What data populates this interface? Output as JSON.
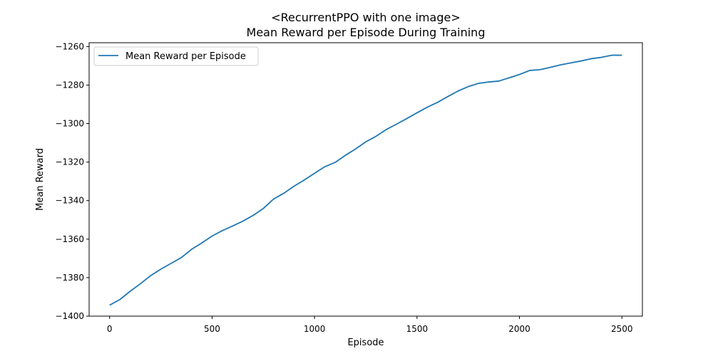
{
  "chart_data": {
    "type": "line",
    "title": "<RecurrentPPO with one image>",
    "subtitle": "Mean Reward per Episode During Training",
    "xlabel": "Episode",
    "ylabel": "Mean Reward",
    "xlim": [
      -100,
      2600
    ],
    "ylim": [
      -1400,
      -1258
    ],
    "xticks": [
      0,
      500,
      1000,
      1500,
      2000,
      2500
    ],
    "yticks": [
      -1400,
      -1380,
      -1360,
      -1340,
      -1320,
      -1300,
      -1280,
      -1260
    ],
    "grid": false,
    "legend": "upper-left",
    "series": [
      {
        "name": "Mean Reward per Episode",
        "color": "#1f77b4",
        "x": [
          0,
          50,
          100,
          150,
          200,
          250,
          300,
          350,
          400,
          450,
          500,
          550,
          600,
          650,
          700,
          750,
          800,
          850,
          900,
          950,
          1000,
          1050,
          1100,
          1150,
          1200,
          1250,
          1300,
          1350,
          1400,
          1450,
          1500,
          1550,
          1600,
          1650,
          1700,
          1750,
          1800,
          1850,
          1900,
          1950,
          2000,
          2050,
          2100,
          2150,
          2200,
          2250,
          2300,
          2350,
          2400,
          2450,
          2500
        ],
        "y": [
          -1394.3,
          -1391.4,
          -1387.1,
          -1383.2,
          -1379.0,
          -1375.6,
          -1372.6,
          -1369.6,
          -1365.3,
          -1362.0,
          -1358.4,
          -1355.6,
          -1353.2,
          -1350.7,
          -1347.7,
          -1344.1,
          -1339.2,
          -1336.2,
          -1332.5,
          -1329.3,
          -1325.8,
          -1322.4,
          -1320.2,
          -1316.5,
          -1313.2,
          -1309.5,
          -1306.6,
          -1303.1,
          -1300.3,
          -1297.4,
          -1294.4,
          -1291.5,
          -1289.0,
          -1286.0,
          -1283.1,
          -1280.8,
          -1279.1,
          -1278.4,
          -1277.9,
          -1276.2,
          -1274.5,
          -1272.4,
          -1272.0,
          -1270.8,
          -1269.5,
          -1268.5,
          -1267.5,
          -1266.3,
          -1265.6,
          -1264.5,
          -1264.5
        ]
      }
    ]
  }
}
